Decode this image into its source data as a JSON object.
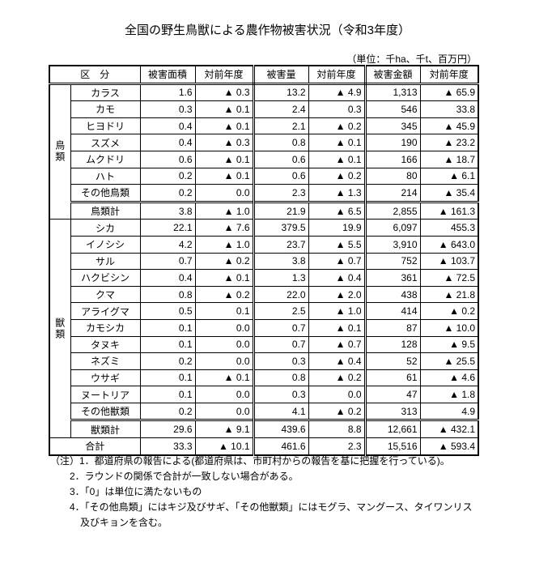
{
  "title": "全国の野生鳥獣による農作物被害状況（令和3年度）",
  "unit": "（単位：千ha、千t、百万円）",
  "headers": [
    "区　分",
    "被害面積",
    "対前年度",
    "被害量",
    "対前年度",
    "被害金額",
    "対前年度"
  ],
  "birds": {
    "category": "鳥類",
    "rows": [
      [
        "カラス",
        "1.6",
        "▲ 0.3",
        "13.2",
        "▲ 4.9",
        "1,313",
        "▲ 65.9"
      ],
      [
        "カモ",
        "0.3",
        "▲ 0.1",
        "2.4",
        "0.3",
        "546",
        "33.8"
      ],
      [
        "ヒヨドリ",
        "0.4",
        "▲ 0.1",
        "2.1",
        "▲ 0.2",
        "345",
        "▲ 45.9"
      ],
      [
        "スズメ",
        "0.4",
        "▲ 0.3",
        "0.8",
        "▲ 0.1",
        "190",
        "▲ 23.2"
      ],
      [
        "ムクドリ",
        "0.6",
        "▲ 0.1",
        "0.6",
        "▲ 0.1",
        "166",
        "▲ 18.7"
      ],
      [
        "ハト",
        "0.2",
        "▲ 0.1",
        "0.6",
        "▲ 0.2",
        "80",
        "▲ 6.1"
      ],
      [
        "その他鳥類",
        "0.2",
        "0.0",
        "2.3",
        "▲ 1.3",
        "214",
        "▲ 35.4"
      ]
    ],
    "subtotal": [
      "鳥類計",
      "3.8",
      "▲ 1.0",
      "21.9",
      "▲ 6.5",
      "2,855",
      "▲ 161.3"
    ]
  },
  "mammals": {
    "category": "獣類",
    "rows": [
      [
        "シカ",
        "22.1",
        "▲ 7.6",
        "379.5",
        "19.9",
        "6,097",
        "455.3"
      ],
      [
        "イノシシ",
        "4.2",
        "▲ 1.0",
        "23.7",
        "▲ 5.5",
        "3,910",
        "▲ 643.0"
      ],
      [
        "サル",
        "0.7",
        "▲ 0.2",
        "3.8",
        "▲ 0.7",
        "752",
        "▲ 103.7"
      ],
      [
        "ハクビシン",
        "0.4",
        "▲ 0.1",
        "1.3",
        "▲ 0.4",
        "361",
        "▲ 72.5"
      ],
      [
        "クマ",
        "0.8",
        "▲ 0.2",
        "22.0",
        "▲ 2.0",
        "438",
        "▲ 21.8"
      ],
      [
        "アライグマ",
        "0.5",
        "0.1",
        "2.5",
        "▲ 1.0",
        "414",
        "▲ 0.2"
      ],
      [
        "カモシカ",
        "0.1",
        "0.0",
        "0.7",
        "▲ 0.1",
        "87",
        "▲ 10.0"
      ],
      [
        "タヌキ",
        "0.1",
        "0.0",
        "0.7",
        "▲ 0.7",
        "128",
        "▲ 9.5"
      ],
      [
        "ネズミ",
        "0.2",
        "0.0",
        "0.3",
        "▲ 0.4",
        "52",
        "▲ 25.5"
      ],
      [
        "ウサギ",
        "0.1",
        "▲ 0.1",
        "0.8",
        "▲ 0.2",
        "61",
        "▲ 4.6"
      ],
      [
        "ヌートリア",
        "0.1",
        "0.0",
        "0.3",
        "0.0",
        "47",
        "▲ 1.8"
      ],
      [
        "その他獣類",
        "0.2",
        "0.0",
        "4.1",
        "▲ 0.2",
        "313",
        "4.9"
      ]
    ],
    "subtotal": [
      "獣類計",
      "29.6",
      "▲ 9.1",
      "439.6",
      "8.8",
      "12,661",
      "▲ 432.1"
    ]
  },
  "total": [
    "合計",
    "33.3",
    "▲ 10.1",
    "461.6",
    "2.3",
    "15,516",
    "▲ 593.4"
  ],
  "notes": [
    "（注）1．都道府県の報告による(都道府県は、市町村からの報告を基に把握を行っている)。",
    "2．ラウンドの関係で合計が一致しない場合がある。",
    "3．「0」は単位に満たないもの",
    "4．「その他鳥類」にはキジ及びサギ、「その他獣類」にはモグラ、マングース、タイワンリス",
    "及びキョンを含む。"
  ]
}
